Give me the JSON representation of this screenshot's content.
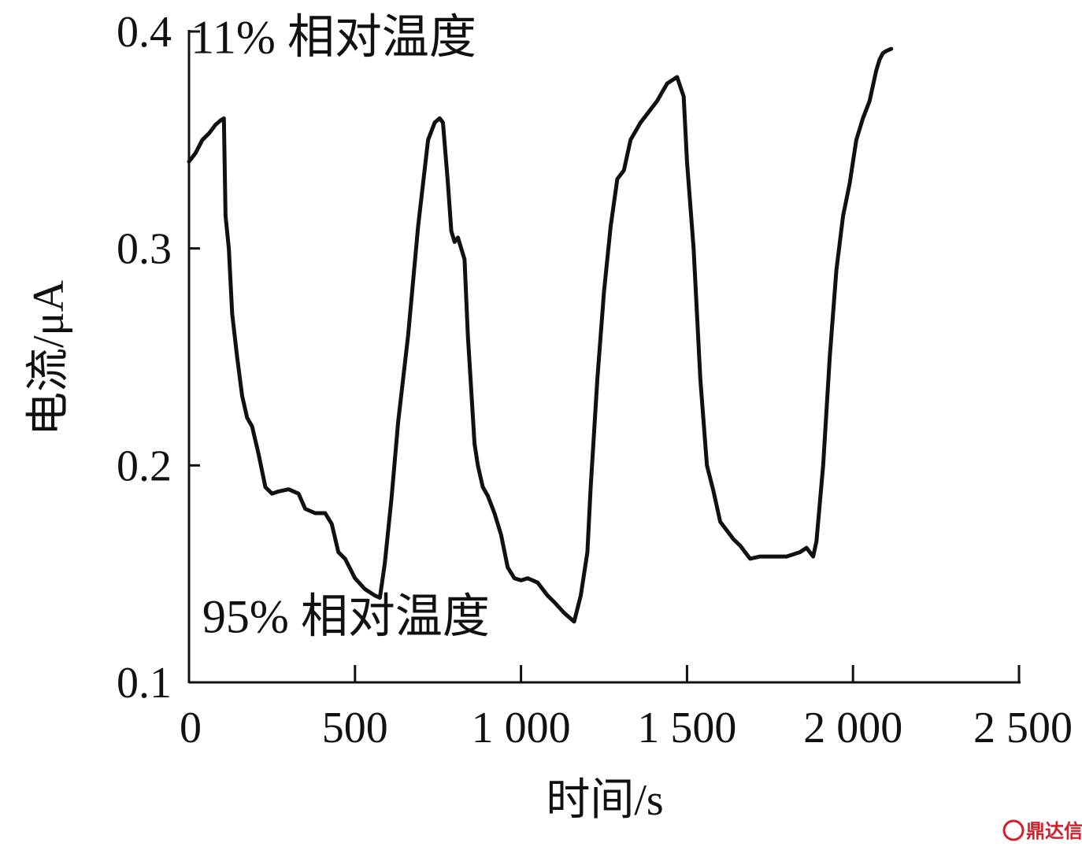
{
  "chart_data": {
    "type": "line",
    "title": "",
    "xlabel": "时间/s",
    "ylabel": "电流/μA",
    "xlim": [
      0,
      2500
    ],
    "ylim": [
      0.1,
      0.4
    ],
    "x_ticks": [
      0,
      500,
      1000,
      1500,
      2000,
      2500
    ],
    "x_tick_labels": [
      "0",
      "500",
      "1 000",
      "1 500",
      "2 000",
      "2 500"
    ],
    "y_ticks": [
      0.1,
      0.2,
      0.3,
      0.4
    ],
    "y_tick_labels": [
      "0.1",
      "0.2",
      "0.3",
      "0.4"
    ],
    "grid": false,
    "annotations": [
      {
        "text": "11% 相对温度",
        "x": 5,
        "y": 0.39
      },
      {
        "text": "95% 相对温度",
        "x": 40,
        "y": 0.123
      }
    ],
    "series": [
      {
        "name": "",
        "color": "#111111",
        "x": [
          0,
          20,
          40,
          60,
          80,
          95,
          105,
          110,
          120,
          130,
          145,
          160,
          175,
          190,
          210,
          230,
          250,
          270,
          300,
          330,
          350,
          380,
          410,
          430,
          450,
          470,
          500,
          530,
          560,
          575,
          590,
          610,
          630,
          660,
          690,
          720,
          740,
          755,
          765,
          780,
          790,
          800,
          810,
          830,
          840,
          860,
          870,
          885,
          900,
          920,
          940,
          960,
          980,
          1000,
          1020,
          1050,
          1080,
          1100,
          1130,
          1160,
          1180,
          1200,
          1210,
          1230,
          1250,
          1270,
          1290,
          1310,
          1330,
          1360,
          1380,
          1410,
          1440,
          1470,
          1490,
          1500,
          1520,
          1540,
          1560,
          1580,
          1600,
          1620,
          1640,
          1660,
          1690,
          1720,
          1740,
          1760,
          1800,
          1840,
          1860,
          1880,
          1890,
          1910,
          1930,
          1950,
          1970,
          1990,
          2010,
          2030,
          2050,
          2060,
          2070,
          2080,
          2090,
          2100,
          2115
        ],
        "y": [
          0.34,
          0.344,
          0.35,
          0.353,
          0.357,
          0.359,
          0.36,
          0.315,
          0.3,
          0.27,
          0.25,
          0.232,
          0.222,
          0.218,
          0.205,
          0.19,
          0.187,
          0.188,
          0.189,
          0.187,
          0.18,
          0.178,
          0.178,
          0.173,
          0.16,
          0.157,
          0.148,
          0.143,
          0.14,
          0.139,
          0.155,
          0.185,
          0.22,
          0.26,
          0.31,
          0.35,
          0.358,
          0.36,
          0.358,
          0.33,
          0.308,
          0.303,
          0.305,
          0.295,
          0.26,
          0.21,
          0.2,
          0.19,
          0.186,
          0.178,
          0.168,
          0.153,
          0.148,
          0.147,
          0.148,
          0.146,
          0.14,
          0.137,
          0.132,
          0.128,
          0.14,
          0.16,
          0.19,
          0.24,
          0.28,
          0.31,
          0.332,
          0.336,
          0.35,
          0.358,
          0.362,
          0.368,
          0.376,
          0.379,
          0.37,
          0.34,
          0.3,
          0.24,
          0.2,
          0.188,
          0.174,
          0.17,
          0.166,
          0.163,
          0.157,
          0.158,
          0.158,
          0.158,
          0.158,
          0.16,
          0.162,
          0.158,
          0.165,
          0.2,
          0.25,
          0.29,
          0.315,
          0.33,
          0.35,
          0.36,
          0.368,
          0.375,
          0.382,
          0.387,
          0.39,
          0.391,
          0.392
        ]
      }
    ]
  },
  "watermark": {
    "text": "鼎达信",
    "color": "#d0202a"
  }
}
